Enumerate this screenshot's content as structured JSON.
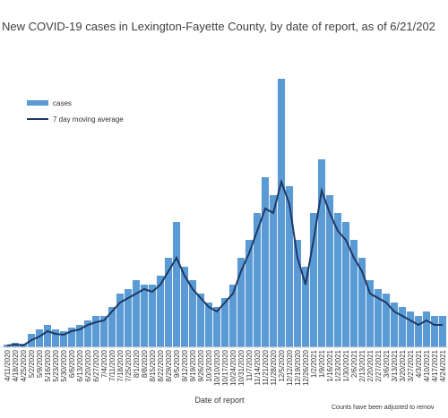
{
  "chart_data": {
    "type": "bar",
    "title": "New COVID-19 cases in Lexington-Fayette County, by date of report, as of 6/21/202",
    "x_label": "Date of report",
    "footnote": "Counts have been adjusted to remov",
    "categories": [
      "4/11/2020",
      "4/18/2020",
      "4/25/2020",
      "5/2/2020",
      "5/9/2020",
      "5/16/2020",
      "5/23/2020",
      "5/30/2020",
      "6/6/2020",
      "6/13/2020",
      "6/20/2020",
      "6/27/2020",
      "7/4/2020",
      "7/11/2020",
      "7/18/2020",
      "7/25/2020",
      "8/1/2020",
      "8/8/2020",
      "8/15/2020",
      "8/22/2020",
      "8/29/2020",
      "9/5/2020",
      "9/12/2020",
      "9/19/2020",
      "9/26/2020",
      "10/3/2020",
      "10/10/2020",
      "10/17/2020",
      "10/24/2020",
      "10/31/2020",
      "11/7/2020",
      "11/14/2020",
      "11/21/2020",
      "11/28/2020",
      "12/5/2020",
      "12/12/2020",
      "12/19/2020",
      "12/26/2020",
      "1/2/2021",
      "1/9/2021",
      "1/16/2021",
      "1/23/2021",
      "1/30/2021",
      "2/6/2021",
      "2/13/2021",
      "2/20/2021",
      "2/27/2021",
      "3/6/2021",
      "3/13/2021",
      "3/20/2021",
      "3/27/2021",
      "4/3/2021",
      "4/10/2021",
      "4/17/2021",
      "4/24/2021"
    ],
    "series": [
      {
        "name": "cases",
        "color": "#5b9bd5",
        "values": [
          3,
          5,
          4,
          15,
          20,
          25,
          20,
          18,
          22,
          25,
          30,
          35,
          35,
          45,
          60,
          65,
          75,
          70,
          70,
          80,
          100,
          140,
          90,
          75,
          60,
          50,
          45,
          55,
          70,
          100,
          120,
          150,
          190,
          170,
          300,
          180,
          120,
          90,
          150,
          210,
          170,
          150,
          140,
          120,
          100,
          75,
          65,
          60,
          50,
          45,
          40,
          35,
          40,
          35,
          35
        ]
      },
      {
        "name": "7 day moving average",
        "color": "#1f3864",
        "values": [
          2,
          3,
          2,
          8,
          12,
          18,
          15,
          14,
          18,
          20,
          25,
          28,
          30,
          40,
          50,
          55,
          60,
          65,
          62,
          70,
          85,
          100,
          80,
          65,
          55,
          45,
          40,
          50,
          60,
          85,
          105,
          130,
          155,
          150,
          185,
          160,
          100,
          70,
          120,
          175,
          150,
          130,
          120,
          100,
          85,
          60,
          55,
          50,
          40,
          35,
          30,
          25,
          30,
          25,
          25
        ]
      }
    ],
    "ylim": [
      0,
      310
    ],
    "legend": "upper-left"
  }
}
